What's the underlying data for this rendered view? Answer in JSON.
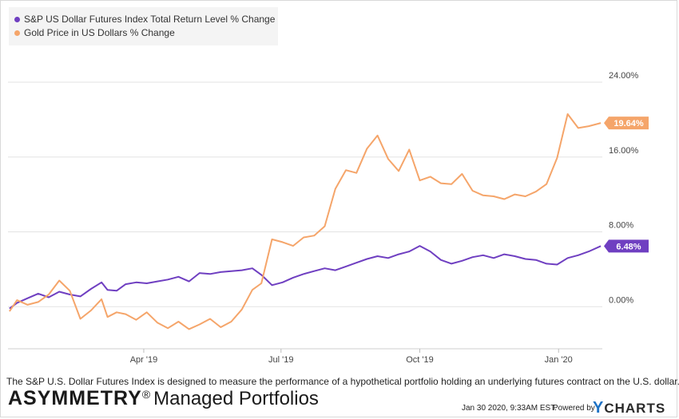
{
  "chart_data": {
    "type": "line",
    "title": "",
    "xlabel": "",
    "ylabel": "",
    "x_ticks": [
      "Apr '19",
      "Jul '19",
      "Oct '19",
      "Jan '20"
    ],
    "y_ticks": [
      "24.00%",
      "16.00%",
      "8.00%",
      "0.00%"
    ],
    "ylim": [
      -4.5,
      27.5
    ],
    "grid": "horizontal",
    "legend_position": "top-left",
    "series": [
      {
        "name": "S&P US Dollar Futures Index Total Return Level % Change",
        "color": "#6f3fc1",
        "last_label": "6.48%",
        "points": [
          [
            "2019-01-02",
            -0.2
          ],
          [
            "2019-01-07",
            0.4
          ],
          [
            "2019-01-14",
            0.9
          ],
          [
            "2019-01-21",
            1.4
          ],
          [
            "2019-01-28",
            1.0
          ],
          [
            "2019-02-04",
            1.6
          ],
          [
            "2019-02-11",
            1.3
          ],
          [
            "2019-02-18",
            1.1
          ],
          [
            "2019-02-25",
            1.9
          ],
          [
            "2019-03-04",
            2.6
          ],
          [
            "2019-03-08",
            1.8
          ],
          [
            "2019-03-14",
            1.7
          ],
          [
            "2019-03-20",
            2.4
          ],
          [
            "2019-03-27",
            2.6
          ],
          [
            "2019-04-03",
            2.5
          ],
          [
            "2019-04-10",
            2.7
          ],
          [
            "2019-04-17",
            2.9
          ],
          [
            "2019-04-24",
            3.2
          ],
          [
            "2019-05-01",
            2.7
          ],
          [
            "2019-05-08",
            3.6
          ],
          [
            "2019-05-15",
            3.5
          ],
          [
            "2019-05-22",
            3.7
          ],
          [
            "2019-05-29",
            3.8
          ],
          [
            "2019-06-05",
            3.9
          ],
          [
            "2019-06-12",
            4.1
          ],
          [
            "2019-06-18",
            3.4
          ],
          [
            "2019-06-25",
            2.3
          ],
          [
            "2019-07-02",
            2.6
          ],
          [
            "2019-07-09",
            3.1
          ],
          [
            "2019-07-16",
            3.5
          ],
          [
            "2019-07-23",
            3.8
          ],
          [
            "2019-07-30",
            4.1
          ],
          [
            "2019-08-06",
            3.9
          ],
          [
            "2019-08-13",
            4.3
          ],
          [
            "2019-08-20",
            4.7
          ],
          [
            "2019-08-27",
            5.1
          ],
          [
            "2019-09-03",
            5.4
          ],
          [
            "2019-09-10",
            5.2
          ],
          [
            "2019-09-17",
            5.6
          ],
          [
            "2019-09-24",
            5.9
          ],
          [
            "2019-10-01",
            6.5
          ],
          [
            "2019-10-08",
            5.9
          ],
          [
            "2019-10-15",
            5.0
          ],
          [
            "2019-10-22",
            4.6
          ],
          [
            "2019-10-29",
            4.9
          ],
          [
            "2019-11-05",
            5.3
          ],
          [
            "2019-11-12",
            5.5
          ],
          [
            "2019-11-19",
            5.2
          ],
          [
            "2019-11-26",
            5.6
          ],
          [
            "2019-12-03",
            5.4
          ],
          [
            "2019-12-10",
            5.1
          ],
          [
            "2019-12-17",
            5.0
          ],
          [
            "2019-12-24",
            4.6
          ],
          [
            "2019-12-31",
            4.5
          ],
          [
            "2020-01-07",
            5.2
          ],
          [
            "2020-01-14",
            5.5
          ],
          [
            "2020-01-21",
            5.9
          ],
          [
            "2020-01-29",
            6.48
          ]
        ]
      },
      {
        "name": "Gold Price in US Dollars % Change",
        "color": "#f5a56a",
        "last_label": "19.64%",
        "points": [
          [
            "2019-01-02",
            -0.5
          ],
          [
            "2019-01-07",
            0.7
          ],
          [
            "2019-01-14",
            0.2
          ],
          [
            "2019-01-21",
            0.5
          ],
          [
            "2019-01-28",
            1.3
          ],
          [
            "2019-02-04",
            2.8
          ],
          [
            "2019-02-11",
            1.7
          ],
          [
            "2019-02-18",
            -1.3
          ],
          [
            "2019-02-25",
            -0.4
          ],
          [
            "2019-03-04",
            0.8
          ],
          [
            "2019-03-08",
            -1.1
          ],
          [
            "2019-03-14",
            -0.6
          ],
          [
            "2019-03-20",
            -0.8
          ],
          [
            "2019-03-27",
            -1.4
          ],
          [
            "2019-04-03",
            -0.6
          ],
          [
            "2019-04-10",
            -1.7
          ],
          [
            "2019-04-17",
            -2.3
          ],
          [
            "2019-04-24",
            -1.6
          ],
          [
            "2019-05-01",
            -2.4
          ],
          [
            "2019-05-08",
            -1.9
          ],
          [
            "2019-05-15",
            -1.3
          ],
          [
            "2019-05-22",
            -2.2
          ],
          [
            "2019-05-29",
            -1.6
          ],
          [
            "2019-06-05",
            -0.3
          ],
          [
            "2019-06-12",
            1.8
          ],
          [
            "2019-06-18",
            2.5
          ],
          [
            "2019-06-25",
            7.2
          ],
          [
            "2019-07-02",
            6.9
          ],
          [
            "2019-07-09",
            6.5
          ],
          [
            "2019-07-16",
            7.4
          ],
          [
            "2019-07-23",
            7.6
          ],
          [
            "2019-07-30",
            8.6
          ],
          [
            "2019-08-06",
            12.6
          ],
          [
            "2019-08-13",
            14.6
          ],
          [
            "2019-08-20",
            14.3
          ],
          [
            "2019-08-27",
            16.9
          ],
          [
            "2019-09-03",
            18.3
          ],
          [
            "2019-09-10",
            15.8
          ],
          [
            "2019-09-17",
            14.5
          ],
          [
            "2019-09-24",
            16.8
          ],
          [
            "2019-10-01",
            13.5
          ],
          [
            "2019-10-08",
            13.9
          ],
          [
            "2019-10-15",
            13.2
          ],
          [
            "2019-10-22",
            13.1
          ],
          [
            "2019-10-29",
            14.2
          ],
          [
            "2019-11-05",
            12.4
          ],
          [
            "2019-11-12",
            11.9
          ],
          [
            "2019-11-19",
            11.8
          ],
          [
            "2019-11-26",
            11.5
          ],
          [
            "2019-12-03",
            12.0
          ],
          [
            "2019-12-10",
            11.8
          ],
          [
            "2019-12-17",
            12.3
          ],
          [
            "2019-12-24",
            13.1
          ],
          [
            "2019-12-31",
            15.9
          ],
          [
            "2020-01-07",
            20.6
          ],
          [
            "2020-01-14",
            19.1
          ],
          [
            "2020-01-21",
            19.3
          ],
          [
            "2020-01-29",
            19.64
          ]
        ]
      }
    ]
  },
  "footnote": "The S&P U.S. Dollar Futures Index is designed to measure the performance of a hypothetical portfolio holding an underlying futures contract on the U.S. dollar.",
  "brand": {
    "bold": "ASYMMETRY",
    "reg": "®",
    "rest": "Managed Portfolios"
  },
  "timestamp": "Jan 30 2020, 9:33AM EST.",
  "powered_by": "Powered by",
  "ycharts": {
    "y": "Y",
    "rest": "CHARTS"
  }
}
